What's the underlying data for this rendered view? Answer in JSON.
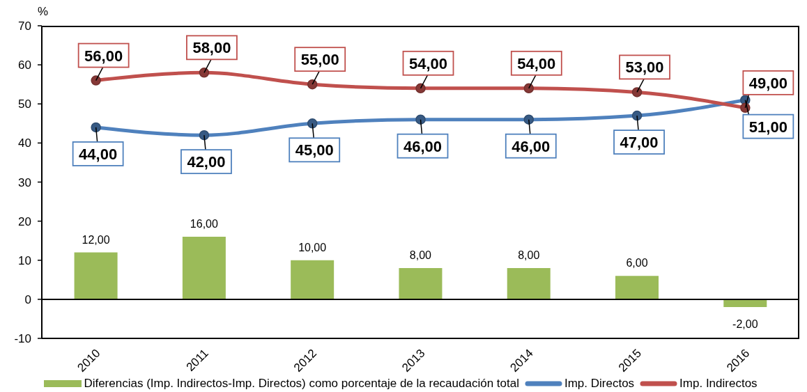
{
  "chart_data": {
    "type": "line",
    "ylabel": "%",
    "categories": [
      "2010",
      "2011",
      "2012",
      "2013",
      "2014",
      "2015",
      "2016"
    ],
    "series": [
      {
        "name": "Diferencias (Imp. Indirectos-Imp. Directos) como porcentaje de la recaudación total",
        "type": "bar",
        "color": "#9bbb59",
        "values": [
          12,
          16,
          10,
          8,
          8,
          6,
          -2
        ],
        "value_labels": [
          "12,00",
          "16,00",
          "10,00",
          "8,00",
          "8,00",
          "6,00",
          "-2,00"
        ]
      },
      {
        "name": "Imp. Directos",
        "color": "#4f81bd",
        "values": [
          44,
          42,
          45,
          46,
          46,
          47,
          51
        ],
        "value_labels": [
          "44,00",
          "42,00",
          "45,00",
          "46,00",
          "46,00",
          "47,00",
          "51,00"
        ]
      },
      {
        "name": "Imp. Indirectos",
        "color": "#c0504d",
        "values": [
          56,
          58,
          55,
          54,
          54,
          53,
          49
        ],
        "value_labels": [
          "56,00",
          "58,00",
          "55,00",
          "54,00",
          "54,00",
          "53,00",
          "49,00"
        ]
      }
    ],
    "ylim": [
      -10,
      70
    ],
    "yticks": [
      -10,
      0,
      10,
      20,
      30,
      40,
      50,
      60,
      70
    ],
    "marker": "circle",
    "legend": "bottom",
    "ref_lines": [
      {
        "axis": "y",
        "value": 0,
        "color": "#000000"
      }
    ]
  }
}
